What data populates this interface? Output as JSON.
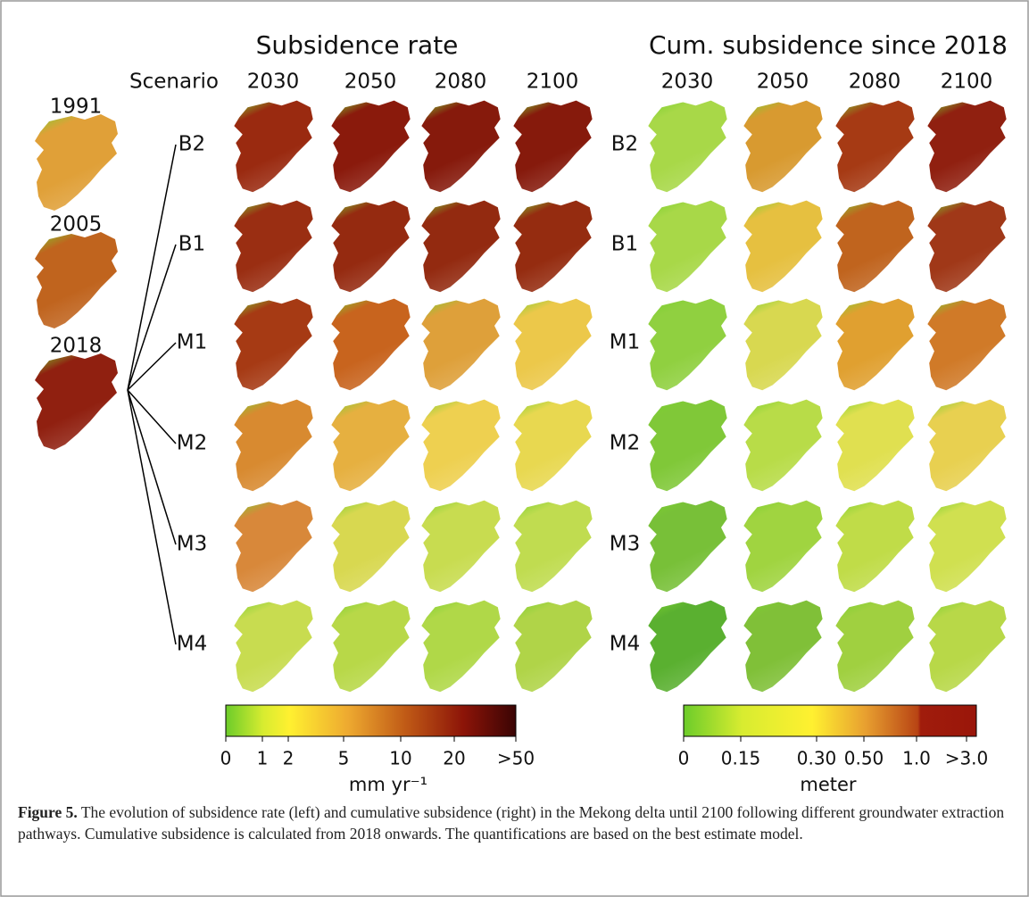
{
  "panels": {
    "rate": {
      "title": "Subsidence rate",
      "years": [
        "2030",
        "2050",
        "2080",
        "2100"
      ]
    },
    "cumulative": {
      "title": "Cum. subsidence since 2018",
      "years": [
        "2030",
        "2050",
        "2080",
        "2100"
      ]
    }
  },
  "scenario_header": "Scenario",
  "history_years": [
    "1991",
    "2005",
    "2018"
  ],
  "scenarios": [
    "B2",
    "B1",
    "M1",
    "M2",
    "M3",
    "M4"
  ],
  "colorbars": [
    {
      "ticks": [
        "0",
        "1",
        "2",
        "5",
        "10",
        "20",
        ">50"
      ],
      "label": "mm yr⁻¹"
    },
    {
      "ticks": [
        "0",
        "0.15",
        "0.30",
        "0.50",
        "1.0",
        ">3.0"
      ],
      "label": "meter"
    }
  ],
  "caption": {
    "label": "Figure 5.",
    "text": "The evolution of subsidence rate (left) and cumulative subsidence (right) in the Mekong delta until 2100 following different groundwater extraction pathways. Cumulative subsidence is calculated from 2018 onwards. The quantifications are based on the best estimate model."
  }
}
